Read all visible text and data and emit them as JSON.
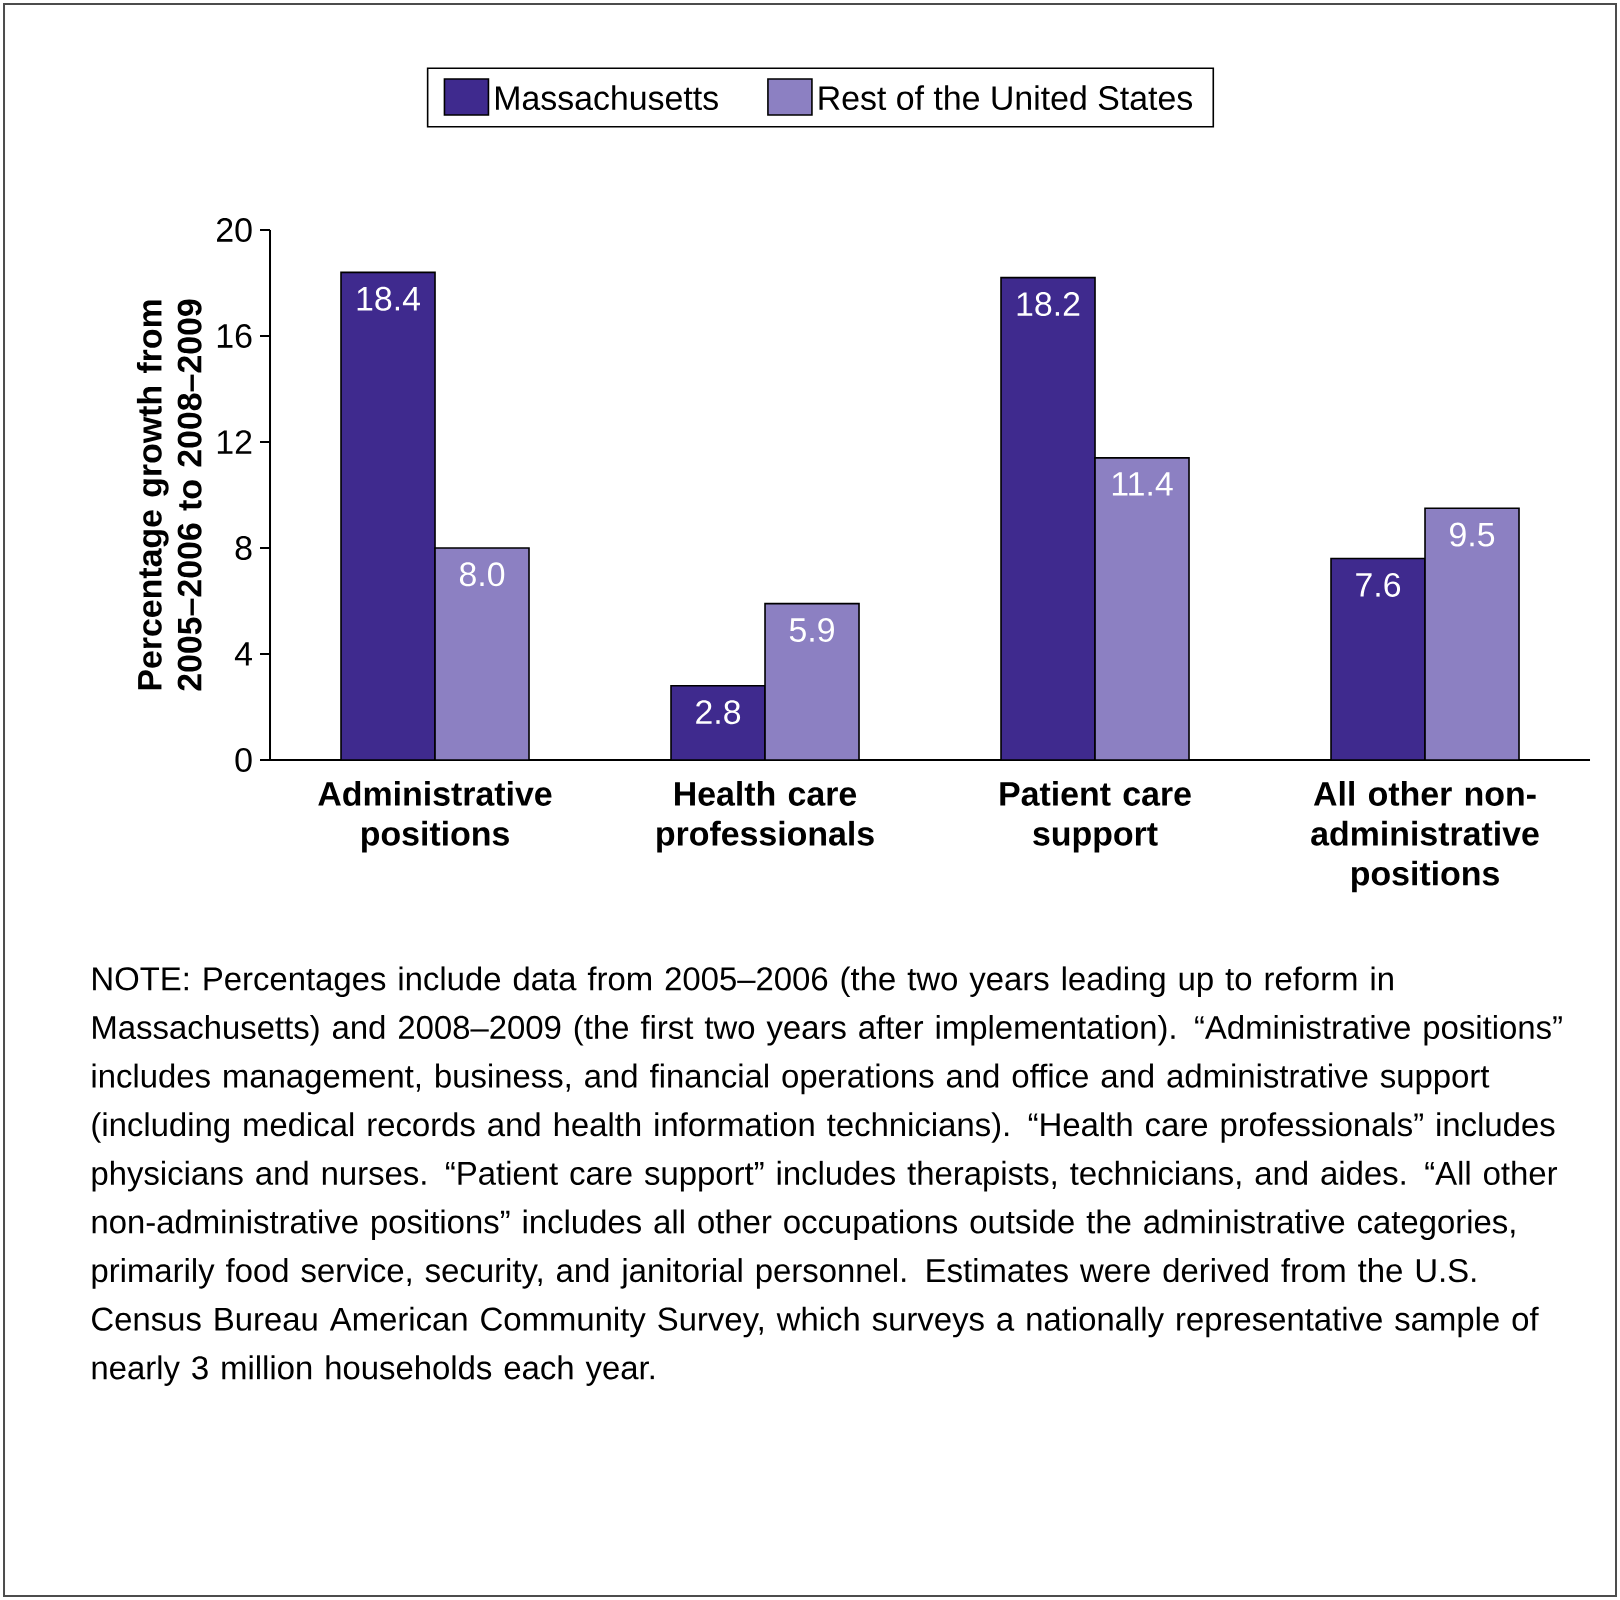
{
  "chart_data": {
    "type": "bar",
    "ylabel": "Percentage growth from 2005–2006 to 2008–2009",
    "categories": [
      "Administrative positions",
      "Health care professionals",
      "Patient care support",
      "All other non-administrative positions"
    ],
    "series": [
      {
        "name": "Massachusetts",
        "color": "#3f2a8e",
        "values": [
          18.4,
          2.8,
          18.2,
          7.6
        ],
        "value_labels": [
          "18.4",
          "2.8",
          "18.2",
          "7.6"
        ]
      },
      {
        "name": "Rest of the United States",
        "color": "#8c80c2",
        "values": [
          8,
          5.9,
          11.4,
          9.5
        ],
        "value_labels": [
          "8.0",
          "5.9",
          "11.4",
          "9.5"
        ]
      }
    ],
    "ylim": [
      0,
      20
    ],
    "yticks": [
      0,
      4,
      8,
      12,
      16,
      20
    ],
    "legend": "top",
    "grid": false,
    "annotations": [
      "NOTE: Percentages include data from 2005–2006 (the two years leading up to reform in Massachusetts) and 2008–2009 (the first two years after implementation). “Administrative positions” includes management, business, and financial operations and office and administrative support (including medical records and health information technicians). “Health care professionals” includes physicians and nurses. “Patient care support” includes therapists, technicians, and aides. “All other non-administrative positions” includes all other occupations outside the administrative categories, primarily food service, security, and janitorial personnel. Estimates were derived from the U.S. Census Bureau American Community Survey, which surveys a nationally representative sample of nearly 3 million households each year."
    ]
  }
}
